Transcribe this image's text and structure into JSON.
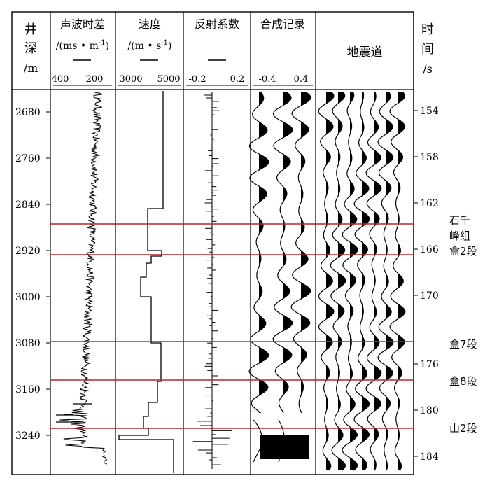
{
  "headers": {
    "depth": [
      "井",
      "深",
      "/m"
    ],
    "sonic": {
      "title": "声波时差",
      "unit": "/(ms • m",
      "unit_sup": "-1",
      "unit_close": ")",
      "ticks": [
        "400",
        "200"
      ]
    },
    "velocity": {
      "title": "速度",
      "unit": "/(m • s",
      "unit_sup": "-1",
      "unit_close": ")",
      "ticks": [
        "3000",
        "5000"
      ]
    },
    "reflection": {
      "title": "反射系数",
      "ticks": [
        "-0.2",
        "0.2"
      ]
    },
    "synthetic": {
      "title": "合成记录",
      "ticks": [
        "-0.4",
        "0.4"
      ]
    },
    "seismic": {
      "title": "地震道"
    },
    "time": [
      "时",
      "间",
      "/s"
    ]
  },
  "depth_ticks": [
    "2680",
    "2760",
    "2840",
    "2920",
    "3000",
    "3080",
    "3160",
    "3240"
  ],
  "time_ticks": [
    "154",
    "158",
    "162",
    "166",
    "170",
    "176",
    "180",
    "184"
  ],
  "horizons": [
    {
      "label": [
        "石千",
        "峰组"
      ]
    },
    {
      "label": [
        "盒2段"
      ]
    },
    {
      "label": [
        "盒7段"
      ]
    },
    {
      "label": [
        "盒8段"
      ]
    },
    {
      "label": [
        "山2段"
      ]
    }
  ],
  "colors": {
    "horizon": "#b22a2a",
    "ink": "#000000"
  }
}
